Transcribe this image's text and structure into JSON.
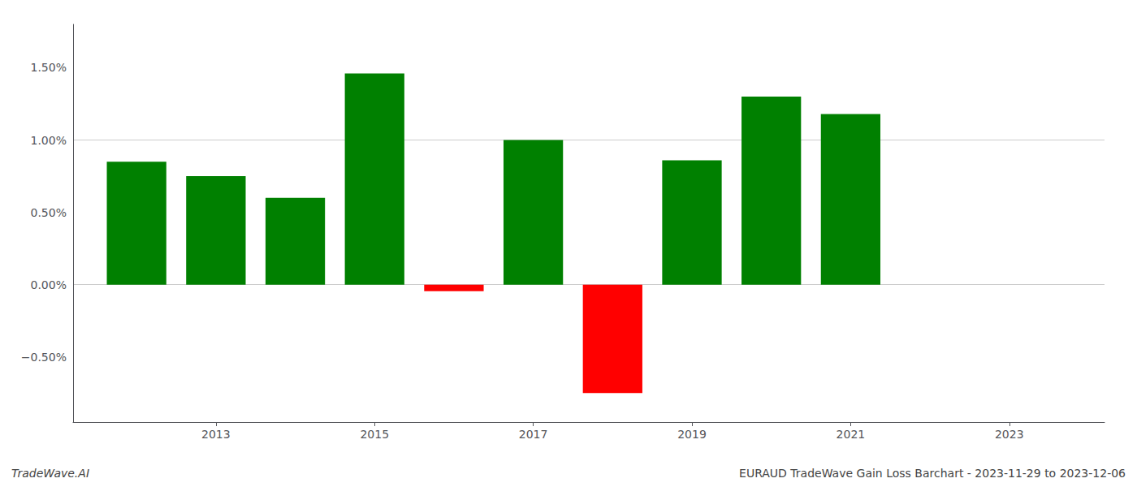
{
  "chart_data": {
    "type": "bar",
    "x": [
      2012,
      2013,
      2014,
      2015,
      2016,
      2017,
      2018,
      2019,
      2020,
      2021,
      2022
    ],
    "values": [
      0.0085,
      0.0075,
      0.006,
      0.0146,
      -0.00045,
      0.01,
      -0.0075,
      0.0086,
      0.013,
      0.0118,
      0.0
    ],
    "colors": [
      "#008000",
      "#008000",
      "#008000",
      "#008000",
      "#ff0000",
      "#008000",
      "#ff0000",
      "#008000",
      "#008000",
      "#008000",
      "#008000"
    ],
    "xlim": [
      2011.2,
      2024.2
    ],
    "xticks": [
      2013,
      2015,
      2017,
      2019,
      2021,
      2023
    ],
    "ylim": [
      -0.0095,
      0.018
    ],
    "yticks": [
      {
        "value": -0.005,
        "label": "−0.50%"
      },
      {
        "value": 0.0,
        "label": "0.00%"
      },
      {
        "value": 0.005,
        "label": "0.50%"
      },
      {
        "value": 0.01,
        "label": "1.00%"
      },
      {
        "value": 0.015,
        "label": "1.50%"
      }
    ],
    "grid": true,
    "annotations": [
      "TradeWave.AI",
      "EURAUD TradeWave Gain Loss Barchart - 2023-11-29 to 2023-12-06"
    ]
  }
}
